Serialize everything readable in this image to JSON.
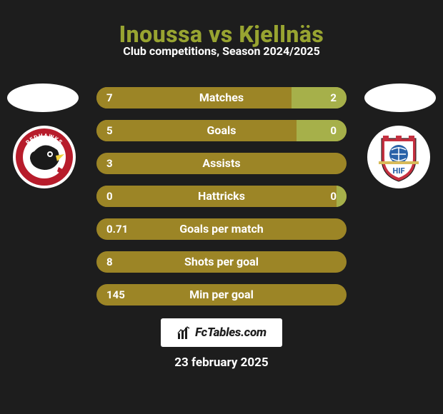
{
  "page": {
    "background_color": "#1d1d1d",
    "text_color": "#ffffff"
  },
  "title": {
    "text": "Inoussa vs Kjellnäs",
    "color": "#98a431",
    "fontsize": 32
  },
  "subtitle": {
    "text": "Club competitions, Season 2024/2025",
    "color": "#ffffff",
    "fontsize": 16
  },
  "players": {
    "left": {
      "oval_color": "#ffffff"
    },
    "right": {
      "oval_color": "#ffffff"
    }
  },
  "clubs": {
    "left": {
      "badge_bg": "#ffffff",
      "badge_primary": "#b71c2b",
      "badge_secondary": "#1a1a1a",
      "badge_accent": "#f2d23a",
      "name": "Malmö Redhawks"
    },
    "right": {
      "badge_bg": "#ffffff",
      "badge_primary": "#c53040",
      "badge_secondary": "#2a62a8",
      "badge_accent": "#d8bb5a",
      "name": "Helsingborgs IF"
    }
  },
  "bars": {
    "left_color": "#9c8526",
    "right_color": "#a6b04a",
    "track_color": "#9c8526",
    "value_color": "#ffffff",
    "label_color": "#ffffff",
    "radius": 15,
    "height": 30,
    "items": [
      {
        "label": "Matches",
        "left": "7",
        "right": "2",
        "left_pct": 78,
        "right_pct": 22
      },
      {
        "label": "Goals",
        "left": "5",
        "right": "0",
        "left_pct": 80,
        "right_pct": 20
      },
      {
        "label": "Assists",
        "left": "3",
        "right": "",
        "left_pct": 100,
        "right_pct": 0
      },
      {
        "label": "Hattricks",
        "left": "0",
        "right": "0",
        "left_pct": 96,
        "right_pct": 4
      },
      {
        "label": "Goals per match",
        "left": "0.71",
        "right": "",
        "left_pct": 100,
        "right_pct": 0
      },
      {
        "label": "Shots per goal",
        "left": "8",
        "right": "",
        "left_pct": 100,
        "right_pct": 0
      },
      {
        "label": "Min per goal",
        "left": "145",
        "right": "",
        "left_pct": 100,
        "right_pct": 0
      }
    ]
  },
  "footer": {
    "brand": "FcTables.com",
    "brand_bg": "#ffffff",
    "brand_color": "#1d1d1d",
    "date": "23 february 2025",
    "date_color": "#ffffff",
    "date_fontsize": 17
  }
}
